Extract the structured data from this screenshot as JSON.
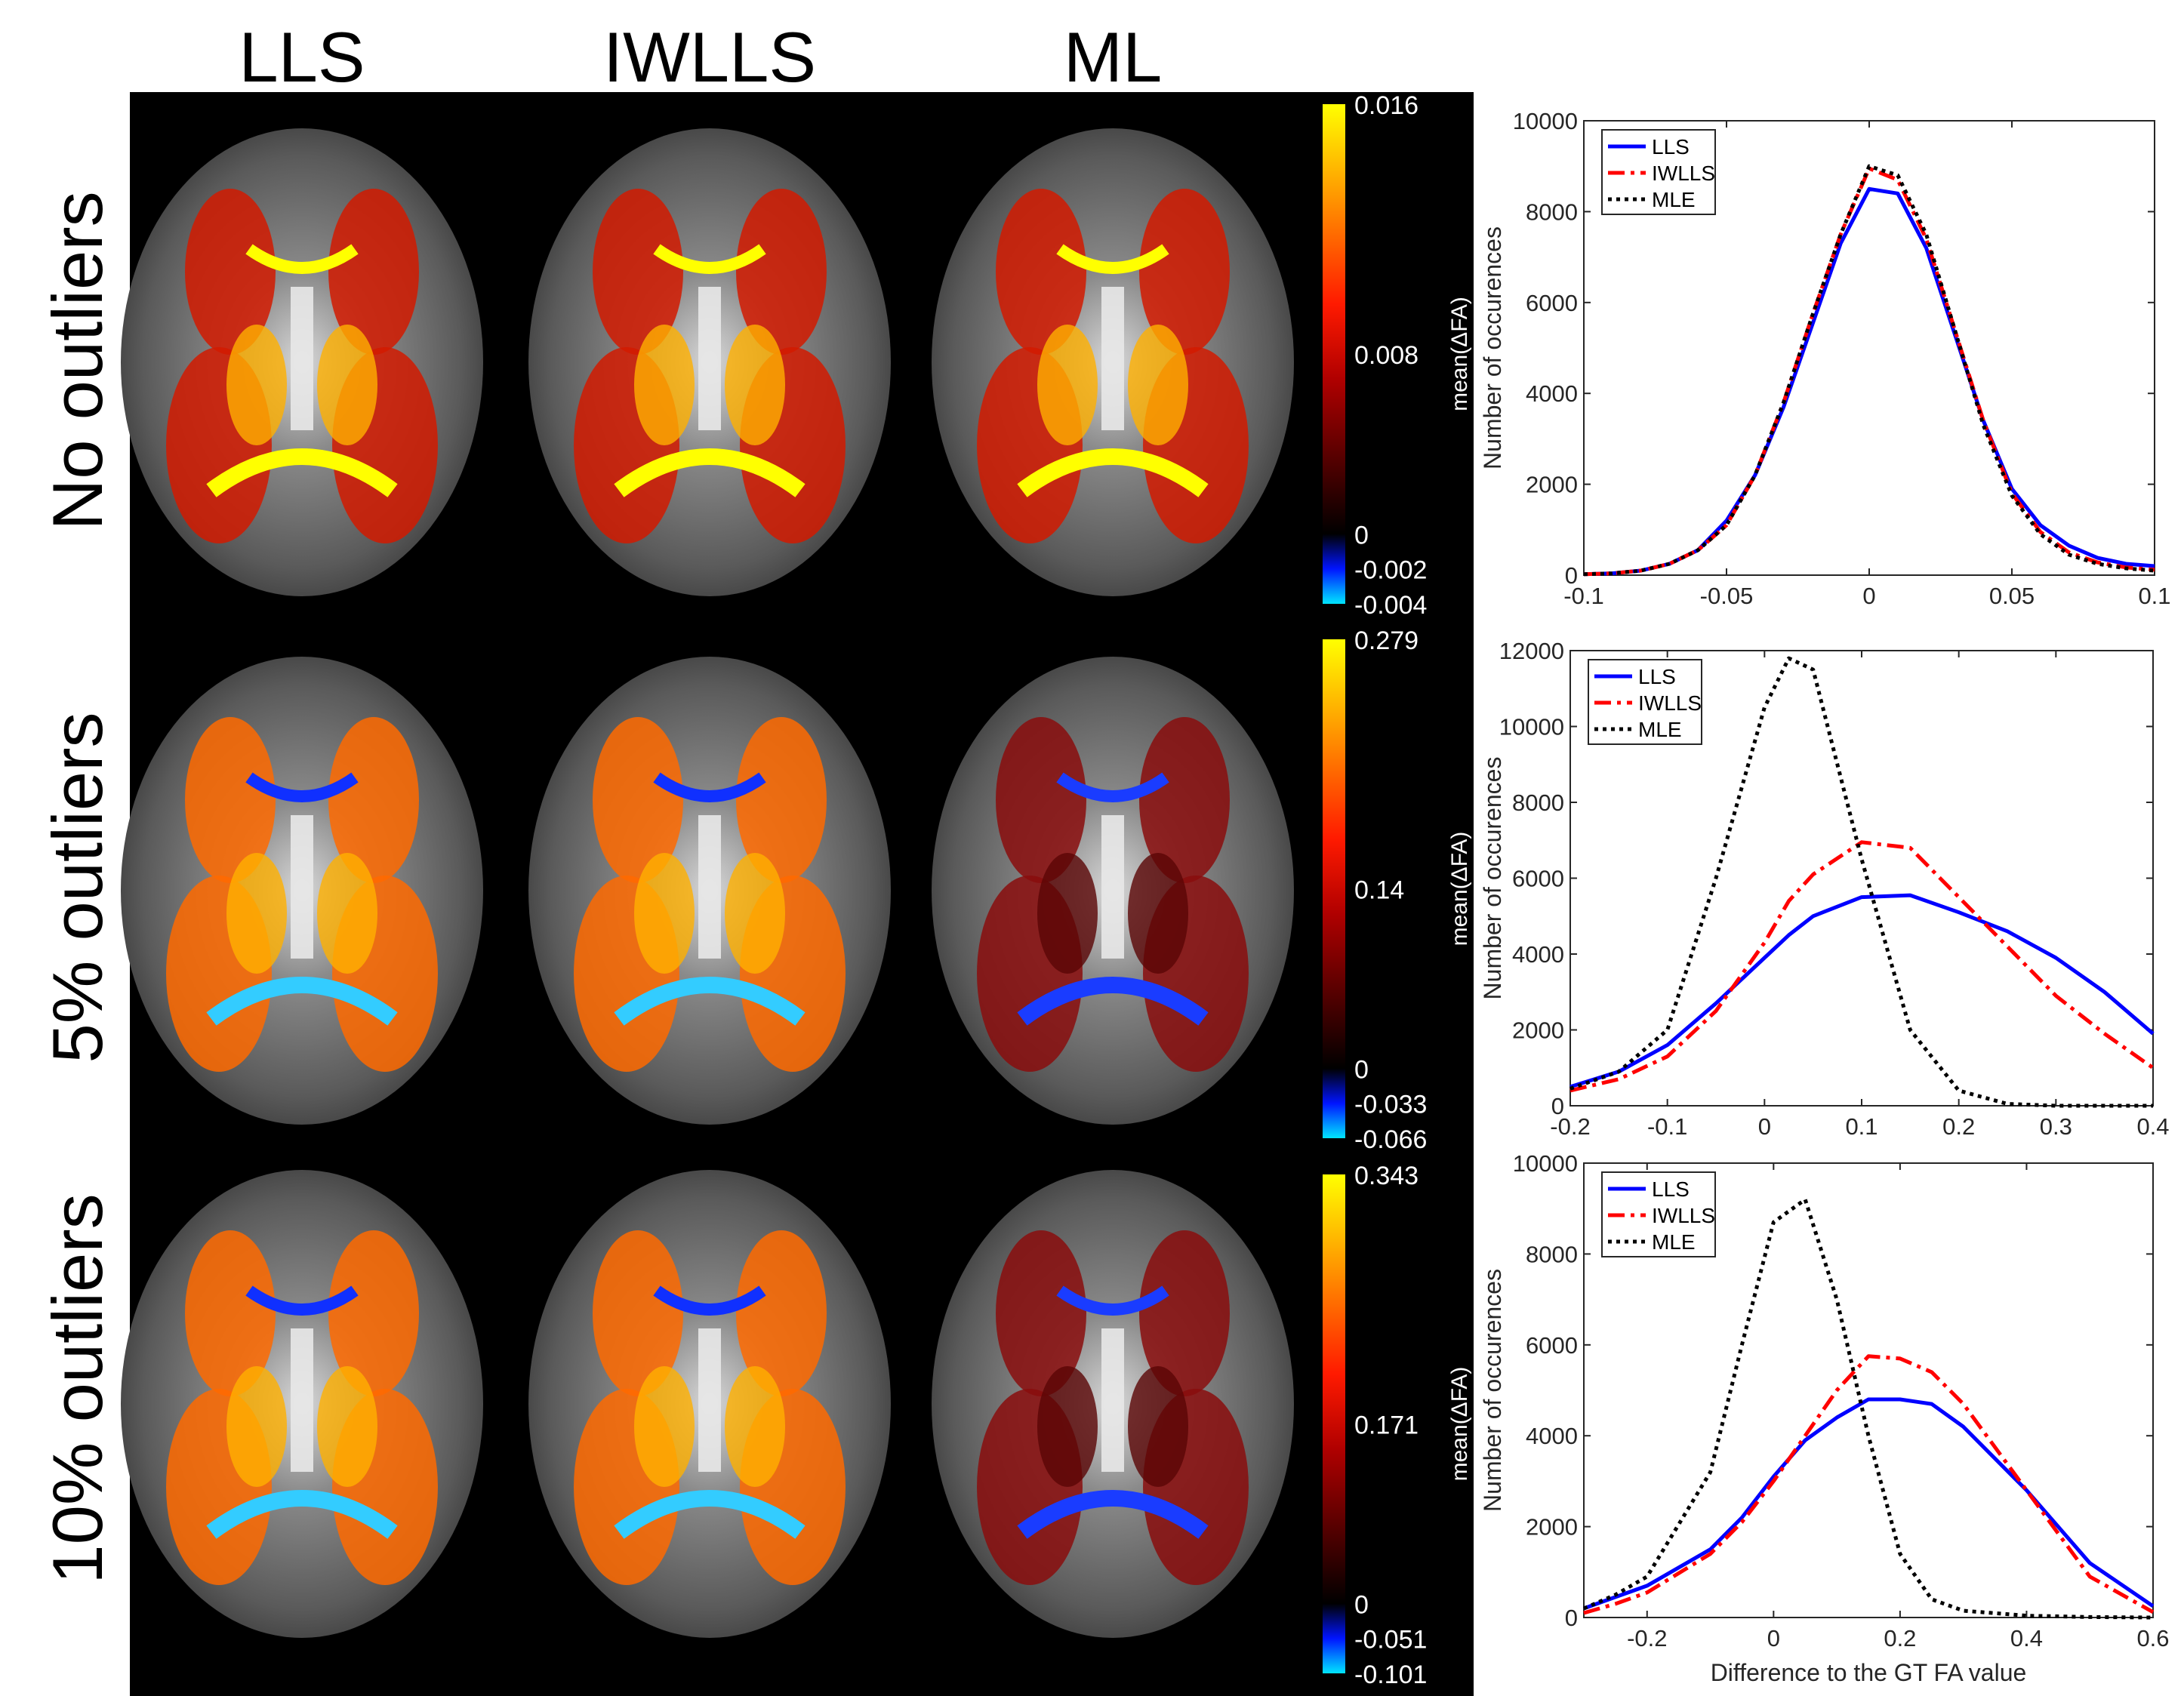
{
  "column_headers": [
    "LLS",
    "IWLLS",
    "ML"
  ],
  "row_labels": [
    "No outliers",
    "5% outliers",
    "10% outliers"
  ],
  "map_colors": {
    "background": "#000000",
    "negative_low": "#00e5ff",
    "negative_mid": "#0014ff",
    "zero": "#000000",
    "positive_mid": "#e60000",
    "positive_high": "#ff8c00",
    "positive_max": "#ffff00"
  },
  "colorbars": [
    {
      "label": "mean(ΔFA)",
      "ticks": [
        "0.016",
        "0.008",
        "0",
        "-0.002",
        "-0.004"
      ]
    },
    {
      "label": "mean(ΔFA)",
      "ticks": [
        "0.279",
        "0.14",
        "0",
        "-0.033",
        "-0.066"
      ]
    },
    {
      "label": "mean(ΔFA)",
      "ticks": [
        "0.343",
        "0.171",
        "0",
        "-0.051",
        "-0.101"
      ]
    }
  ],
  "chart_data": [
    {
      "type": "line",
      "title": "",
      "xlabel": "",
      "ylabel": "Number of occurences",
      "xlim": [
        -0.1,
        0.1
      ],
      "ylim": [
        0,
        10000
      ],
      "xticks": [
        -0.1,
        -0.05,
        0,
        0.05,
        0.1
      ],
      "xtick_labels": [
        "-0.1",
        "-0.05",
        "0",
        "0.05",
        "0.1"
      ],
      "yticks": [
        0,
        2000,
        4000,
        6000,
        8000,
        10000
      ],
      "ytick_labels": [
        "0",
        "2000",
        "4000",
        "6000",
        "8000",
        "10000"
      ],
      "legend_position": "top-left",
      "x": [
        -0.1,
        -0.09,
        -0.08,
        -0.07,
        -0.06,
        -0.05,
        -0.04,
        -0.03,
        -0.02,
        -0.01,
        0,
        0.01,
        0.02,
        0.03,
        0.04,
        0.05,
        0.06,
        0.07,
        0.08,
        0.09,
        0.1
      ],
      "series": [
        {
          "name": "LLS",
          "color": "#0000ff",
          "dash": "solid",
          "values": [
            20,
            40,
            100,
            250,
            550,
            1200,
            2200,
            3700,
            5500,
            7300,
            8500,
            8400,
            7200,
            5300,
            3400,
            1900,
            1100,
            650,
            380,
            250,
            200
          ]
        },
        {
          "name": "IWLLS",
          "color": "#ff0000",
          "dash": "dashdot",
          "values": [
            20,
            40,
            100,
            250,
            550,
            1100,
            2200,
            3800,
            5700,
            7500,
            8950,
            8700,
            7400,
            5400,
            3400,
            1800,
            950,
            500,
            280,
            170,
            120
          ]
        },
        {
          "name": "MLE",
          "color": "#000000",
          "dash": "dotted",
          "values": [
            20,
            40,
            100,
            250,
            550,
            1100,
            2200,
            3800,
            5700,
            7500,
            9000,
            8800,
            7500,
            5400,
            3300,
            1750,
            900,
            450,
            250,
            150,
            100
          ]
        }
      ]
    },
    {
      "type": "line",
      "title": "",
      "xlabel": "",
      "ylabel": "Number of occurences",
      "xlim": [
        -0.2,
        0.4
      ],
      "ylim": [
        0,
        12000
      ],
      "xticks": [
        -0.2,
        -0.1,
        0,
        0.1,
        0.2,
        0.3,
        0.4
      ],
      "xtick_labels": [
        "-0.2",
        "-0.1",
        "0",
        "0.1",
        "0.2",
        "0.3",
        "0.4"
      ],
      "yticks": [
        0,
        2000,
        4000,
        6000,
        8000,
        10000,
        12000
      ],
      "ytick_labels": [
        "0",
        "2000",
        "4000",
        "6000",
        "8000",
        "10000",
        "12000"
      ],
      "legend_position": "top-left",
      "x": [
        -0.2,
        -0.15,
        -0.1,
        -0.05,
        0,
        0.025,
        0.05,
        0.1,
        0.15,
        0.2,
        0.25,
        0.3,
        0.35,
        0.4
      ],
      "series": [
        {
          "name": "LLS",
          "color": "#0000ff",
          "dash": "solid",
          "values": [
            500,
            900,
            1600,
            2700,
            3900,
            4500,
            5000,
            5500,
            5550,
            5100,
            4600,
            3900,
            3000,
            1900
          ]
        },
        {
          "name": "IWLLS",
          "color": "#ff0000",
          "dash": "dashdot",
          "values": [
            400,
            700,
            1300,
            2500,
            4300,
            5400,
            6100,
            6950,
            6800,
            5500,
            4200,
            2900,
            1900,
            1000
          ]
        },
        {
          "name": "MLE",
          "color": "#000000",
          "dash": "dotted",
          "values": [
            450,
            900,
            2000,
            6000,
            10500,
            11800,
            11500,
            6500,
            2000,
            400,
            50,
            0,
            0,
            0
          ]
        }
      ]
    },
    {
      "type": "line",
      "title": "",
      "xlabel": "Difference to the GT FA value",
      "ylabel": "Number of occurences",
      "xlim": [
        -0.3,
        0.6
      ],
      "ylim": [
        0,
        10000
      ],
      "xticks": [
        -0.2,
        0,
        0.2,
        0.4,
        0.6
      ],
      "xtick_labels": [
        "-0.2",
        "0",
        "0.2",
        "0.4",
        "0.6"
      ],
      "yticks": [
        0,
        2000,
        4000,
        6000,
        8000,
        10000
      ],
      "ytick_labels": [
        "0",
        "2000",
        "4000",
        "6000",
        "8000",
        "10000"
      ],
      "legend_position": "top-left",
      "x": [
        -0.3,
        -0.25,
        -0.2,
        -0.1,
        -0.05,
        0,
        0.05,
        0.1,
        0.15,
        0.2,
        0.25,
        0.3,
        0.4,
        0.5,
        0.6
      ],
      "series": [
        {
          "name": "LLS",
          "color": "#0000ff",
          "dash": "solid",
          "values": [
            200,
            450,
            700,
            1500,
            2200,
            3100,
            3900,
            4400,
            4800,
            4800,
            4700,
            4200,
            2800,
            1200,
            250
          ]
        },
        {
          "name": "IWLLS",
          "color": "#ff0000",
          "dash": "dashdot",
          "values": [
            100,
            300,
            550,
            1400,
            2100,
            3000,
            4000,
            5000,
            5750,
            5700,
            5400,
            4700,
            2800,
            900,
            120
          ]
        },
        {
          "name": "MLE",
          "color": "#000000",
          "dash": "dotted",
          "values": [
            200,
            500,
            900,
            3200,
            6000,
            8700,
            9200,
            7000,
            4000,
            1400,
            400,
            150,
            40,
            10,
            0
          ]
        }
      ]
    }
  ]
}
